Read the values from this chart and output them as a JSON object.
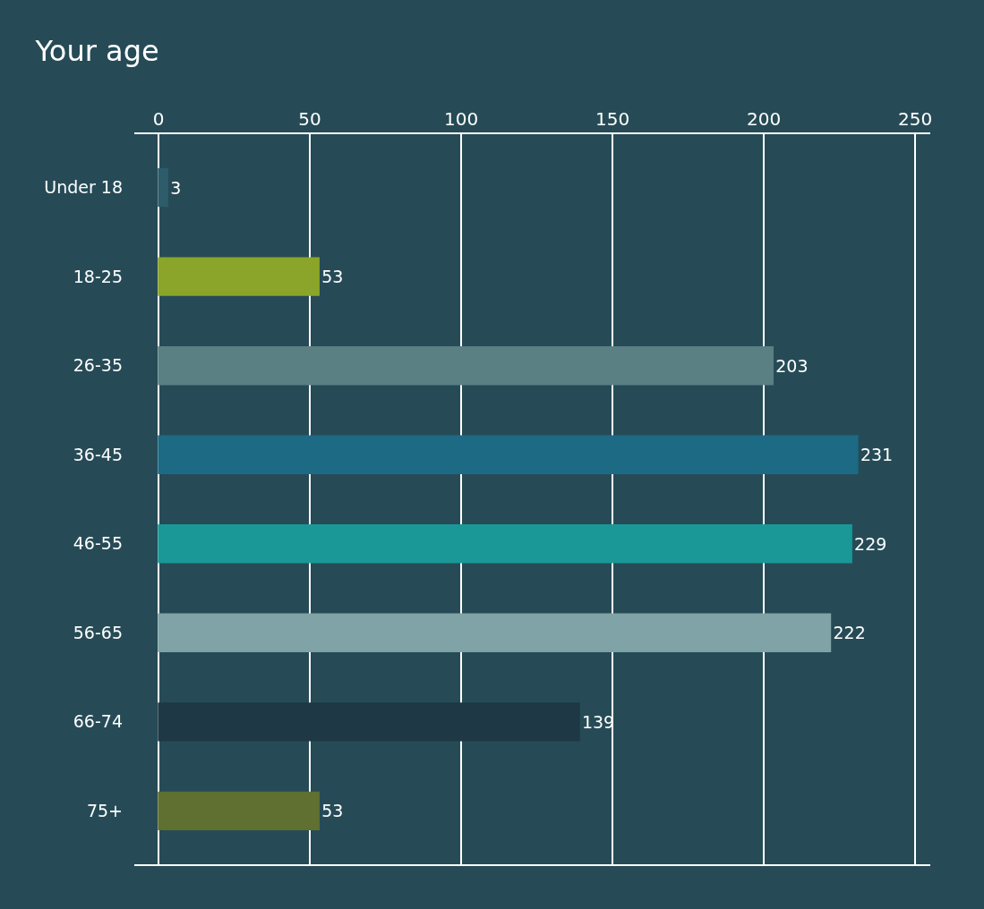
{
  "chart_data": {
    "type": "bar",
    "orientation": "horizontal",
    "title": "Your age",
    "categories": [
      "Under 18",
      "18-25",
      "26-35",
      "36-45",
      "46-55",
      "56-65",
      "66-74",
      "75+"
    ],
    "values": [
      3,
      53,
      203,
      231,
      229,
      222,
      139,
      53
    ],
    "colors": [
      "#2f5c6a",
      "#8aa52a",
      "#5a8084",
      "#1d6a85",
      "#1a9898",
      "#7fa3a6",
      "#1e3845",
      "#5f7030"
    ],
    "xlim": [
      -8,
      255
    ],
    "xticks": [
      0,
      50,
      100,
      150,
      200,
      250
    ],
    "grid": "x",
    "data_labels": true,
    "legend": false
  }
}
